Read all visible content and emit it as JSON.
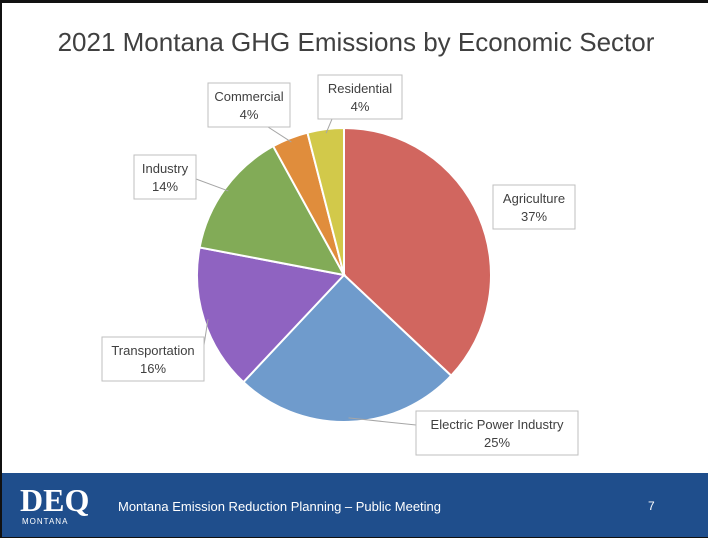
{
  "slide": {
    "title": "2021 Montana GHG Emissions by Economic Sector"
  },
  "chart_data": {
    "type": "pie",
    "title": "2021 Montana GHG Emissions by Economic Sector",
    "categories": [
      "Agriculture",
      "Electric Power Industry",
      "Transportation",
      "Industry",
      "Commercial",
      "Residential"
    ],
    "values": [
      37,
      25,
      16,
      14,
      4,
      4
    ],
    "value_labels": [
      "37%",
      "25%",
      "16%",
      "14%",
      "4%",
      "4%"
    ],
    "colors": [
      "#d1665f",
      "#6f9bcc",
      "#8f63c1",
      "#82ab57",
      "#e08d3c",
      "#d2c94a"
    ],
    "legend": "none",
    "data_labels": "callouts"
  },
  "footer": {
    "logo_text": "DEQ",
    "logo_subtext": "MONTANA",
    "caption": "Montana Emission Reduction Planning – Public Meeting",
    "page_number": "7",
    "background": "#1f4e8c"
  }
}
